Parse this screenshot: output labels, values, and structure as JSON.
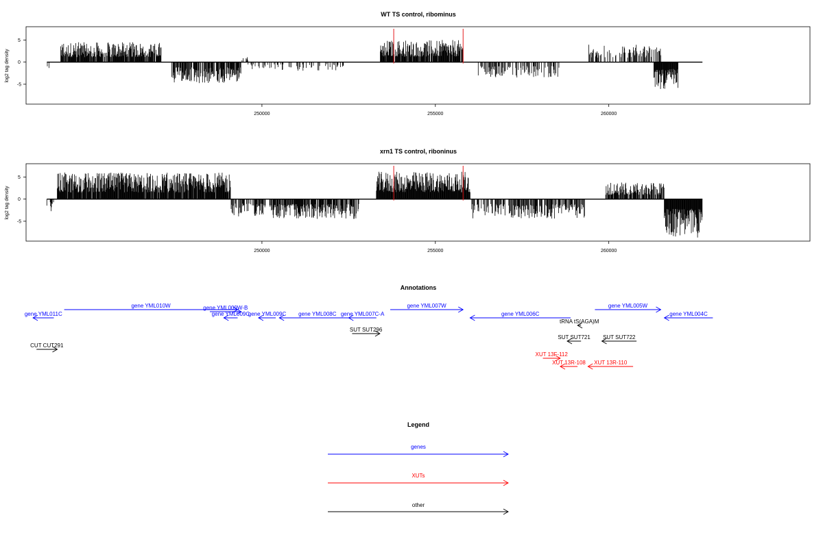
{
  "figure": {
    "annotations_title": "Annotations",
    "legend_title": "Legend"
  },
  "chart_data": [
    {
      "type": "bar",
      "title": "WT TS control, ribominus",
      "xlabel": "",
      "ylabel": "log2 tag density",
      "xlim": [
        243200,
        265800
      ],
      "ylim": [
        -9.5,
        8
      ],
      "x_ticks": [
        250000,
        255000,
        260000
      ],
      "x_tick_labels": [
        "250000",
        "255000",
        "260000"
      ],
      "y_ticks": [
        -5,
        0,
        5
      ],
      "y_tick_labels": [
        "-5",
        "0",
        "5"
      ],
      "grid": false,
      "data_range": [
        243800,
        258700
      ],
      "marker_color": "#e41a1c",
      "markers": [
        253800,
        255800
      ],
      "segments": [
        {
          "start": 243800,
          "end": 243900,
          "sign": -1,
          "max": 1.5,
          "density": 0.5
        },
        {
          "start": 244200,
          "end": 247100,
          "sign": 1,
          "max": 4.5,
          "density": 0.85
        },
        {
          "start": 247400,
          "end": 249400,
          "sign": -1,
          "max": 4.8,
          "density": 0.75
        },
        {
          "start": 249400,
          "end": 249600,
          "sign": 1,
          "max": 1.5,
          "density": 0.3
        },
        {
          "start": 249600,
          "end": 252400,
          "sign": -1,
          "max": 2.0,
          "density": 0.25
        },
        {
          "start": 253400,
          "end": 255800,
          "sign": 1,
          "max": 5.0,
          "density": 0.9
        },
        {
          "start": 256200,
          "end": 258600,
          "sign": -1,
          "max": 3.5,
          "density": 0.35
        },
        {
          "start": 259400,
          "end": 261500,
          "sign": 1,
          "max": 4.0,
          "density": 0.45
        },
        {
          "start": 261300,
          "end": 262000,
          "sign": -1,
          "max": 6.2,
          "density": 1.0
        }
      ],
      "data_range_full": [
        243800,
        262700
      ]
    },
    {
      "type": "bar",
      "title": "xrn1 TS control, riboninus",
      "xlabel": "",
      "ylabel": "log2 tag density",
      "xlim": [
        243200,
        265800
      ],
      "ylim": [
        -9.5,
        8
      ],
      "x_ticks": [
        250000,
        255000,
        260000
      ],
      "x_tick_labels": [
        "250000",
        "255000",
        "260000"
      ],
      "y_ticks": [
        -5,
        0,
        5
      ],
      "y_tick_labels": [
        "-5",
        "0",
        "5"
      ],
      "grid": false,
      "marker_color": "#e41a1c",
      "markers": [
        253800,
        255800
      ],
      "segments": [
        {
          "start": 243800,
          "end": 244000,
          "sign": -1,
          "max": 2.8,
          "density": 0.6
        },
        {
          "start": 244100,
          "end": 249100,
          "sign": 1,
          "max": 6.0,
          "density": 0.95
        },
        {
          "start": 249100,
          "end": 250100,
          "sign": -1,
          "max": 4.0,
          "density": 0.55
        },
        {
          "start": 250200,
          "end": 252800,
          "sign": -1,
          "max": 4.5,
          "density": 0.8
        },
        {
          "start": 253300,
          "end": 256000,
          "sign": 1,
          "max": 6.2,
          "density": 1.0
        },
        {
          "start": 256000,
          "end": 259300,
          "sign": -1,
          "max": 4.5,
          "density": 0.6
        },
        {
          "start": 259900,
          "end": 261600,
          "sign": 1,
          "max": 3.8,
          "density": 0.75
        },
        {
          "start": 261600,
          "end": 262700,
          "sign": -1,
          "max": 8.8,
          "density": 1.0
        }
      ]
    }
  ],
  "annotations": {
    "xlim": [
      243200,
      265800
    ],
    "features": [
      {
        "label": "gene YML011C",
        "color": "#0000ff",
        "strand": "-",
        "start": 243400,
        "end": 244000,
        "row": 1
      },
      {
        "label": "gene YML010W",
        "color": "#0000ff",
        "strand": "+",
        "start": 244300,
        "end": 249300,
        "row": 0
      },
      {
        "label": "gene YML009W-B",
        "color": "#0000ff",
        "strand": "+",
        "start": 248500,
        "end": 249400,
        "row": 0.3
      },
      {
        "label": "gene YML009C",
        "color": "#0000ff",
        "strand": "-",
        "start": 248900,
        "end": 249300,
        "row": 1
      },
      {
        "label": "gene YML009C",
        "color": "#0000ff",
        "strand": "-",
        "start": 249900,
        "end": 250400,
        "row": 1
      },
      {
        "label": "gene YML008C",
        "color": "#0000ff",
        "strand": "-",
        "start": 250500,
        "end": 252700,
        "row": 1
      },
      {
        "label": "gene YML007C-A",
        "color": "#0000ff",
        "strand": "-",
        "start": 252500,
        "end": 253300,
        "row": 1
      },
      {
        "label": "gene YML007W",
        "color": "#0000ff",
        "strand": "+",
        "start": 253700,
        "end": 255800,
        "row": 0
      },
      {
        "label": "gene YML006C",
        "color": "#0000ff",
        "strand": "-",
        "start": 256000,
        "end": 258900,
        "row": 1
      },
      {
        "label": "gene YML005W",
        "color": "#0000ff",
        "strand": "+",
        "start": 259600,
        "end": 261500,
        "row": 0
      },
      {
        "label": "gene YML004C",
        "color": "#0000ff",
        "strand": "-",
        "start": 261600,
        "end": 263000,
        "row": 1
      },
      {
        "label": "tRNA tS(AGA)M",
        "color": "#000000",
        "strand": "-",
        "start": 259100,
        "end": 259200,
        "row": 2
      },
      {
        "label": "SUT SUT296",
        "color": "#000000",
        "strand": "+",
        "start": 252600,
        "end": 253400,
        "row": 3
      },
      {
        "label": "SUT SUT721",
        "color": "#000000",
        "strand": "-",
        "start": 258800,
        "end": 259200,
        "row": 4
      },
      {
        "label": "SUT SUT722",
        "color": "#000000",
        "strand": "-",
        "start": 259800,
        "end": 260800,
        "row": 4
      },
      {
        "label": "CUT CUT291",
        "color": "#000000",
        "strand": "+",
        "start": 243500,
        "end": 244100,
        "row": 5
      },
      {
        "label": "XUT 13F-112",
        "color": "#ff0000",
        "strand": "+",
        "start": 258100,
        "end": 258600,
        "row": 6
      },
      {
        "label": "XUT 13R-108",
        "color": "#ff0000",
        "strand": "-",
        "start": 258600,
        "end": 259100,
        "row": 7
      },
      {
        "label": "XUT 13R-110",
        "color": "#ff0000",
        "strand": "-",
        "start": 259400,
        "end": 260700,
        "row": 7
      }
    ]
  },
  "legend": {
    "items": [
      {
        "label": "genes",
        "color": "#0000ff"
      },
      {
        "label": "XUTs",
        "color": "#ff0000"
      },
      {
        "label": "other",
        "color": "#000000"
      }
    ]
  }
}
